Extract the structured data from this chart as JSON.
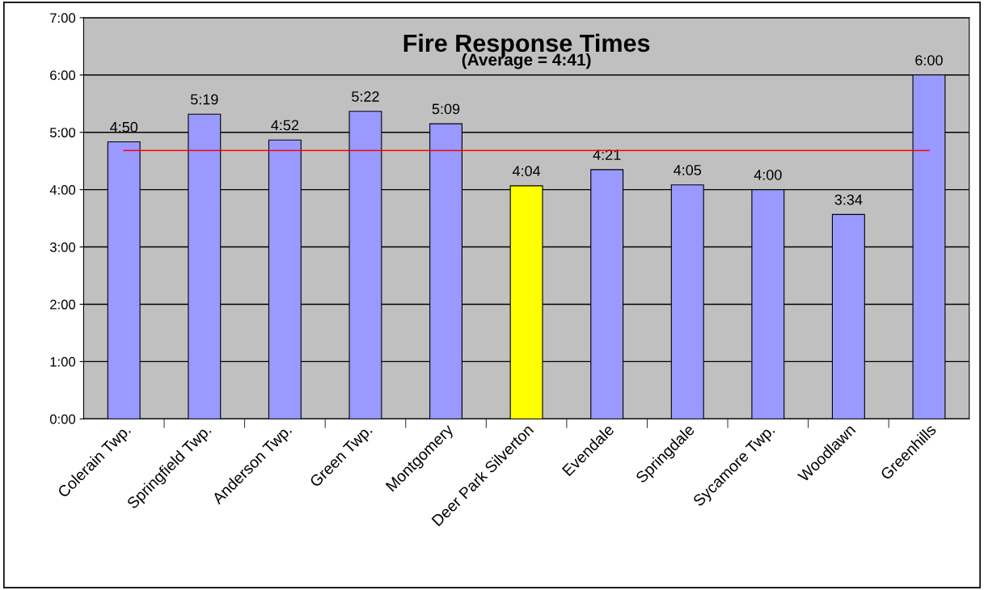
{
  "chart_data": {
    "type": "bar",
    "title": "Fire Response Times",
    "subtitle": "(Average = 4:41)",
    "categories": [
      "Colerain Twp.",
      "Springfield Twp.",
      "Anderson Twp.",
      "Green Twp.",
      "Montgomery",
      "Deer Park Silverton",
      "Evendale",
      "Springdale",
      "Sycamore Twp.",
      "Woodlawn",
      "Greenhills"
    ],
    "values": [
      4.8333,
      5.3167,
      4.8667,
      5.3667,
      5.15,
      4.0667,
      4.35,
      4.0833,
      4.0,
      3.5667,
      6.0
    ],
    "colors": [
      "#9999ff",
      "#9999ff",
      "#9999ff",
      "#9999ff",
      "#9999ff",
      "#ffff00",
      "#9999ff",
      "#9999ff",
      "#9999ff",
      "#9999ff",
      "#9999ff"
    ],
    "value_labels": [
      "4:50",
      "5:19",
      "4:52",
      "5:22",
      "5:09",
      "4:04",
      "4:21",
      "4:05",
      "4:00",
      "3:34",
      "6:00"
    ],
    "ylim": [
      0,
      7
    ],
    "yticks": [
      {
        "value": 0,
        "label": "0:00"
      },
      {
        "value": 1,
        "label": "1:00"
      },
      {
        "value": 2,
        "label": "2:00"
      },
      {
        "value": 3,
        "label": "3:00"
      },
      {
        "value": 4,
        "label": "4:00"
      },
      {
        "value": 5,
        "label": "5:00"
      },
      {
        "value": 6,
        "label": "6:00"
      },
      {
        "value": 7,
        "label": "7:00"
      }
    ],
    "ref_lines": [
      {
        "axis": "y",
        "value": 4.6833,
        "color": "#ff0000"
      }
    ],
    "grid": "y"
  }
}
